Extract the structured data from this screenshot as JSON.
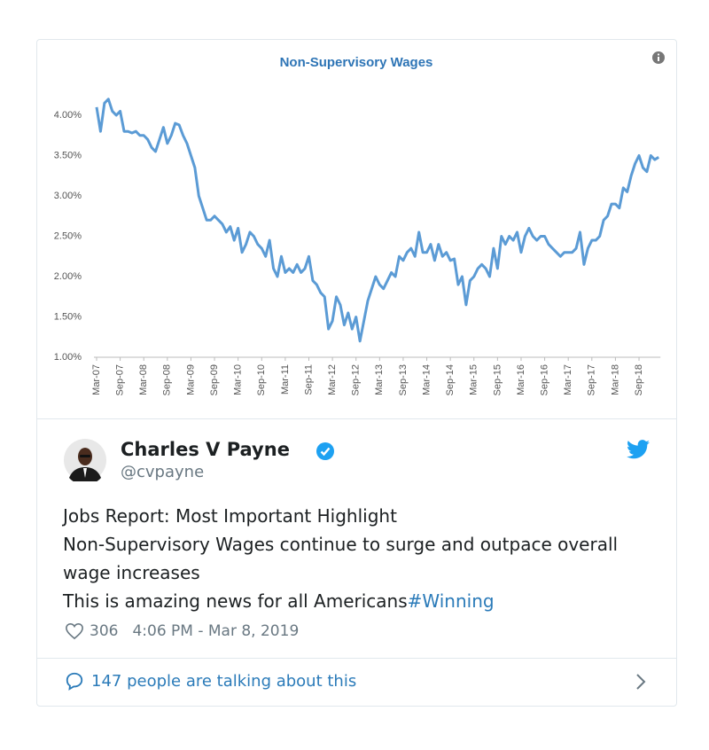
{
  "chart_data": {
    "type": "line",
    "title": "Non-Supervisory Wages",
    "categories": [
      "Mar-07",
      null,
      null,
      null,
      null,
      null,
      "Sep-07",
      null,
      null,
      null,
      null,
      null,
      "Mar-08",
      null,
      null,
      null,
      null,
      null,
      "Sep-08",
      null,
      null,
      null,
      null,
      null,
      "Mar-09",
      null,
      null,
      null,
      null,
      null,
      "Sep-09",
      null,
      null,
      null,
      null,
      null,
      "Mar-10",
      null,
      null,
      null,
      null,
      null,
      "Sep-10",
      null,
      null,
      null,
      null,
      null,
      "Mar-11",
      null,
      null,
      null,
      null,
      null,
      "Sep-11",
      null,
      null,
      null,
      null,
      null,
      "Mar-12",
      null,
      null,
      null,
      null,
      null,
      "Sep-12",
      null,
      null,
      null,
      null,
      null,
      "Mar-13",
      null,
      null,
      null,
      null,
      null,
      "Sep-13",
      null,
      null,
      null,
      null,
      null,
      "Mar-14",
      null,
      null,
      null,
      null,
      null,
      "Sep-14",
      null,
      null,
      null,
      null,
      null,
      "Mar-15",
      null,
      null,
      null,
      null,
      null,
      "Sep-15",
      null,
      null,
      null,
      null,
      null,
      "Mar-16",
      null,
      null,
      null,
      null,
      null,
      "Sep-16",
      null,
      null,
      null,
      null,
      null,
      "Mar-17",
      null,
      null,
      null,
      null,
      null,
      "Sep-17",
      null,
      null,
      null,
      null,
      null,
      "Mar-18",
      null,
      null,
      null,
      null,
      null,
      "Sep-18",
      null,
      null,
      null,
      null,
      null
    ],
    "values": [
      4.1,
      3.8,
      4.15,
      4.2,
      4.05,
      4.0,
      4.05,
      3.8,
      3.8,
      3.78,
      3.8,
      3.75,
      3.75,
      3.7,
      3.6,
      3.55,
      3.7,
      3.85,
      3.65,
      3.75,
      3.9,
      3.88,
      3.75,
      3.65,
      3.5,
      3.35,
      3.0,
      2.85,
      2.7,
      2.7,
      2.75,
      2.7,
      2.65,
      2.55,
      2.62,
      2.45,
      2.6,
      2.3,
      2.4,
      2.55,
      2.5,
      2.4,
      2.35,
      2.25,
      2.45,
      2.1,
      2.0,
      2.25,
      2.05,
      2.1,
      2.05,
      2.15,
      2.05,
      2.1,
      2.25,
      1.95,
      1.9,
      1.8,
      1.75,
      1.35,
      1.45,
      1.75,
      1.65,
      1.4,
      1.55,
      1.35,
      1.5,
      1.2,
      1.45,
      1.7,
      1.85,
      2.0,
      1.9,
      1.85,
      1.95,
      2.05,
      2.0,
      2.25,
      2.2,
      2.3,
      2.35,
      2.25,
      2.55,
      2.3,
      2.3,
      2.4,
      2.2,
      2.4,
      2.25,
      2.3,
      2.2,
      2.22,
      1.9,
      2.0,
      1.65,
      1.95,
      2.0,
      2.1,
      2.15,
      2.1,
      2.0,
      2.35,
      2.1,
      2.5,
      2.4,
      2.5,
      2.45,
      2.55,
      2.3,
      2.5,
      2.6,
      2.5,
      2.45,
      2.5,
      2.5,
      2.4,
      2.35,
      2.3,
      2.25,
      2.3,
      2.3,
      2.3,
      2.35,
      2.55,
      2.15,
      2.35,
      2.45,
      2.45,
      2.5,
      2.7,
      2.75,
      2.9,
      2.9,
      2.85,
      3.1,
      3.05,
      3.25,
      3.4,
      3.5,
      3.35,
      3.3,
      3.5,
      3.45,
      3.48
    ],
    "color": "#5b9bd5",
    "ylim": [
      1,
      4.3
    ],
    "yticks": [
      {
        "value": 1,
        "label": "1.00%"
      },
      {
        "value": 1.5,
        "label": "1.50%"
      },
      {
        "value": 2,
        "label": "2.00%"
      },
      {
        "value": 2.5,
        "label": "2.50%"
      },
      {
        "value": 3,
        "label": "3.00%"
      },
      {
        "value": 3.5,
        "label": "3.50%"
      },
      {
        "value": 4,
        "label": "4.00%"
      }
    ],
    "grid": false
  },
  "tweet": {
    "name": "Charles V Payne",
    "handle": "@cvpayne",
    "text": [
      "Jobs Report:  Most Important Highlight",
      "Non-Supervisory Wages continue to surge and outpace overall wage increases",
      "This is amazing news for all Americans"
    ],
    "hashtag": "#Winning",
    "likes": 306,
    "timestamp": "4:06 PM - Mar 8, 2019",
    "footer": "147 people are talking about this"
  }
}
